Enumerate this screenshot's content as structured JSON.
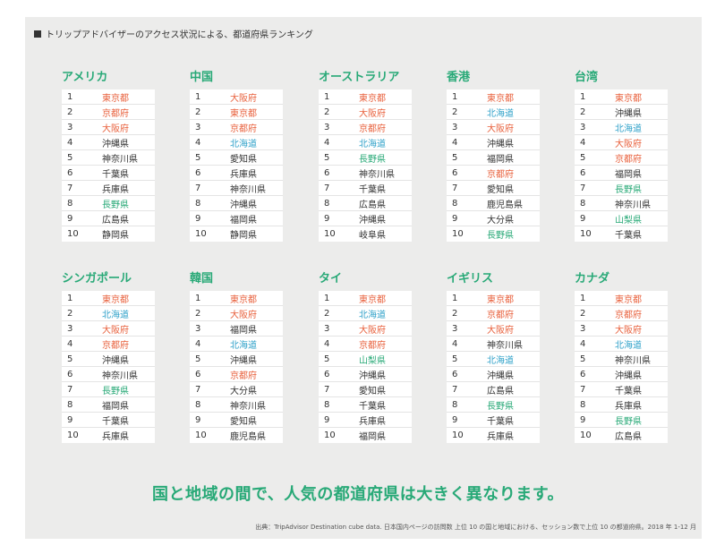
{
  "heading": "トリップアドバイザーのアクセス状況による、都道府県ランキング",
  "colors": {
    "tokyo": "#e8603c",
    "osaka": "#e8603c",
    "kyoto": "#e8603c",
    "hokkaido": "#2fa1c9",
    "nagano": "#28a977",
    "yamanashi": "#28a977",
    "default": "#333333"
  },
  "countries": [
    {
      "name": "アメリカ",
      "ranks": [
        {
          "n": "1",
          "p": "東京都",
          "c": "tokyo"
        },
        {
          "n": "2",
          "p": "京都府",
          "c": "kyoto"
        },
        {
          "n": "3",
          "p": "大阪府",
          "c": "osaka"
        },
        {
          "n": "4",
          "p": "沖縄県",
          "c": "default"
        },
        {
          "n": "5",
          "p": "神奈川県",
          "c": "default"
        },
        {
          "n": "6",
          "p": "千葉県",
          "c": "default"
        },
        {
          "n": "7",
          "p": "兵庫県",
          "c": "default"
        },
        {
          "n": "8",
          "p": "長野県",
          "c": "nagano"
        },
        {
          "n": "9",
          "p": "広島県",
          "c": "default"
        },
        {
          "n": "10",
          "p": "静岡県",
          "c": "default"
        }
      ]
    },
    {
      "name": "中国",
      "ranks": [
        {
          "n": "1",
          "p": "大阪府",
          "c": "osaka"
        },
        {
          "n": "2",
          "p": "東京都",
          "c": "tokyo"
        },
        {
          "n": "3",
          "p": "京都府",
          "c": "kyoto"
        },
        {
          "n": "4",
          "p": "北海道",
          "c": "hokkaido"
        },
        {
          "n": "5",
          "p": "愛知県",
          "c": "default"
        },
        {
          "n": "6",
          "p": "兵庫県",
          "c": "default"
        },
        {
          "n": "7",
          "p": "神奈川県",
          "c": "default"
        },
        {
          "n": "8",
          "p": "沖縄県",
          "c": "default"
        },
        {
          "n": "9",
          "p": "福岡県",
          "c": "default"
        },
        {
          "n": "10",
          "p": "静岡県",
          "c": "default"
        }
      ]
    },
    {
      "name": "オーストラリア",
      "ranks": [
        {
          "n": "1",
          "p": "東京都",
          "c": "tokyo"
        },
        {
          "n": "2",
          "p": "大阪府",
          "c": "osaka"
        },
        {
          "n": "3",
          "p": "京都府",
          "c": "kyoto"
        },
        {
          "n": "4",
          "p": "北海道",
          "c": "hokkaido"
        },
        {
          "n": "5",
          "p": "長野県",
          "c": "nagano"
        },
        {
          "n": "6",
          "p": "神奈川県",
          "c": "default"
        },
        {
          "n": "7",
          "p": "千葉県",
          "c": "default"
        },
        {
          "n": "8",
          "p": "広島県",
          "c": "default"
        },
        {
          "n": "9",
          "p": "沖縄県",
          "c": "default"
        },
        {
          "n": "10",
          "p": "岐阜県",
          "c": "default"
        }
      ]
    },
    {
      "name": "香港",
      "ranks": [
        {
          "n": "1",
          "p": "東京都",
          "c": "tokyo"
        },
        {
          "n": "2",
          "p": "北海道",
          "c": "hokkaido"
        },
        {
          "n": "3",
          "p": "大阪府",
          "c": "osaka"
        },
        {
          "n": "4",
          "p": "沖縄県",
          "c": "default"
        },
        {
          "n": "5",
          "p": "福岡県",
          "c": "default"
        },
        {
          "n": "6",
          "p": "京都府",
          "c": "kyoto"
        },
        {
          "n": "7",
          "p": "愛知県",
          "c": "default"
        },
        {
          "n": "8",
          "p": "鹿児島県",
          "c": "default"
        },
        {
          "n": "9",
          "p": "大分県",
          "c": "default"
        },
        {
          "n": "10",
          "p": "長野県",
          "c": "nagano"
        }
      ]
    },
    {
      "name": "台湾",
      "ranks": [
        {
          "n": "1",
          "p": "東京都",
          "c": "tokyo"
        },
        {
          "n": "2",
          "p": "沖縄県",
          "c": "default"
        },
        {
          "n": "3",
          "p": "北海道",
          "c": "hokkaido"
        },
        {
          "n": "4",
          "p": "大阪府",
          "c": "osaka"
        },
        {
          "n": "5",
          "p": "京都府",
          "c": "kyoto"
        },
        {
          "n": "6",
          "p": "福岡県",
          "c": "default"
        },
        {
          "n": "7",
          "p": "長野県",
          "c": "nagano"
        },
        {
          "n": "8",
          "p": "神奈川県",
          "c": "default"
        },
        {
          "n": "9",
          "p": "山梨県",
          "c": "yamanashi"
        },
        {
          "n": "10",
          "p": "千葉県",
          "c": "default"
        }
      ]
    },
    {
      "name": "シンガポール",
      "ranks": [
        {
          "n": "1",
          "p": "東京都",
          "c": "tokyo"
        },
        {
          "n": "2",
          "p": "北海道",
          "c": "hokkaido"
        },
        {
          "n": "3",
          "p": "大阪府",
          "c": "osaka"
        },
        {
          "n": "4",
          "p": "京都府",
          "c": "kyoto"
        },
        {
          "n": "5",
          "p": "沖縄県",
          "c": "default"
        },
        {
          "n": "6",
          "p": "神奈川県",
          "c": "default"
        },
        {
          "n": "7",
          "p": "長野県",
          "c": "nagano"
        },
        {
          "n": "8",
          "p": "福岡県",
          "c": "default"
        },
        {
          "n": "9",
          "p": "千葉県",
          "c": "default"
        },
        {
          "n": "10",
          "p": "兵庫県",
          "c": "default"
        }
      ]
    },
    {
      "name": "韓国",
      "ranks": [
        {
          "n": "1",
          "p": "東京都",
          "c": "tokyo"
        },
        {
          "n": "2",
          "p": "大阪府",
          "c": "osaka"
        },
        {
          "n": "3",
          "p": "福岡県",
          "c": "default"
        },
        {
          "n": "4",
          "p": "北海道",
          "c": "hokkaido"
        },
        {
          "n": "5",
          "p": "沖縄県",
          "c": "default"
        },
        {
          "n": "6",
          "p": "京都府",
          "c": "kyoto"
        },
        {
          "n": "7",
          "p": "大分県",
          "c": "default"
        },
        {
          "n": "8",
          "p": "神奈川県",
          "c": "default"
        },
        {
          "n": "9",
          "p": "愛知県",
          "c": "default"
        },
        {
          "n": "10",
          "p": "鹿児島県",
          "c": "default"
        }
      ]
    },
    {
      "name": "タイ",
      "ranks": [
        {
          "n": "1",
          "p": "東京都",
          "c": "tokyo"
        },
        {
          "n": "2",
          "p": "北海道",
          "c": "hokkaido"
        },
        {
          "n": "3",
          "p": "大阪府",
          "c": "osaka"
        },
        {
          "n": "4",
          "p": "京都府",
          "c": "kyoto"
        },
        {
          "n": "5",
          "p": "山梨県",
          "c": "yamanashi"
        },
        {
          "n": "6",
          "p": "沖縄県",
          "c": "default"
        },
        {
          "n": "7",
          "p": "愛知県",
          "c": "default"
        },
        {
          "n": "8",
          "p": "千葉県",
          "c": "default"
        },
        {
          "n": "9",
          "p": "兵庫県",
          "c": "default"
        },
        {
          "n": "10",
          "p": "福岡県",
          "c": "default"
        }
      ]
    },
    {
      "name": "イギリス",
      "ranks": [
        {
          "n": "1",
          "p": "東京都",
          "c": "tokyo"
        },
        {
          "n": "2",
          "p": "京都府",
          "c": "kyoto"
        },
        {
          "n": "3",
          "p": "大阪府",
          "c": "osaka"
        },
        {
          "n": "4",
          "p": "神奈川県",
          "c": "default"
        },
        {
          "n": "5",
          "p": "北海道",
          "c": "hokkaido"
        },
        {
          "n": "6",
          "p": "沖縄県",
          "c": "default"
        },
        {
          "n": "7",
          "p": "広島県",
          "c": "default"
        },
        {
          "n": "8",
          "p": "長野県",
          "c": "nagano"
        },
        {
          "n": "9",
          "p": "千葉県",
          "c": "default"
        },
        {
          "n": "10",
          "p": "兵庫県",
          "c": "default"
        }
      ]
    },
    {
      "name": "カナダ",
      "ranks": [
        {
          "n": "1",
          "p": "東京都",
          "c": "tokyo"
        },
        {
          "n": "2",
          "p": "京都府",
          "c": "kyoto"
        },
        {
          "n": "3",
          "p": "大阪府",
          "c": "osaka"
        },
        {
          "n": "4",
          "p": "北海道",
          "c": "hokkaido"
        },
        {
          "n": "5",
          "p": "神奈川県",
          "c": "default"
        },
        {
          "n": "6",
          "p": "沖縄県",
          "c": "default"
        },
        {
          "n": "7",
          "p": "千葉県",
          "c": "default"
        },
        {
          "n": "8",
          "p": "兵庫県",
          "c": "default"
        },
        {
          "n": "9",
          "p": "長野県",
          "c": "nagano"
        },
        {
          "n": "10",
          "p": "広島県",
          "c": "default"
        }
      ]
    }
  ],
  "tagline": "国と地域の間で、人気の都道府県は大きく異なります。",
  "source": "出典：TripAdvisor Destination cube data. 日本国内ページの訪問数 上位 10 の国と地域における、セッション数で上位 10 の都道府県。2018 年 1-12 月"
}
